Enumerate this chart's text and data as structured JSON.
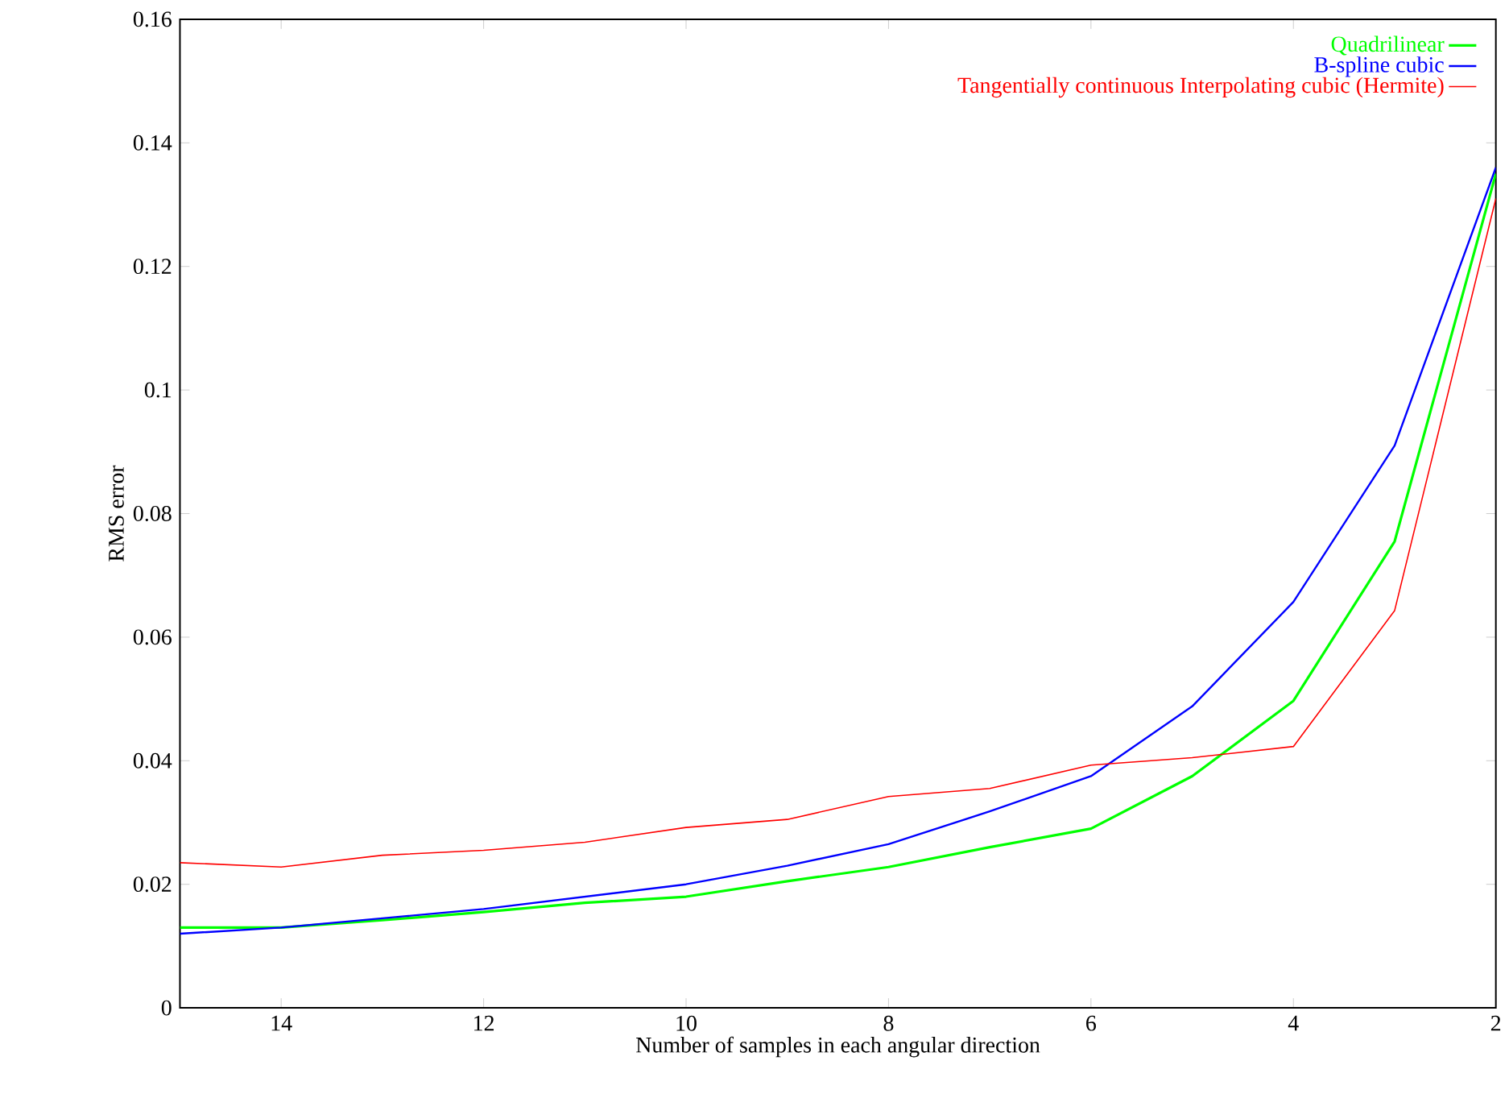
{
  "chart_data": {
    "type": "line",
    "xlabel": "Number of samples in each angular direction",
    "ylabel": "RMS error",
    "x": [
      15,
      14,
      13,
      12,
      11,
      10,
      9,
      8,
      7,
      6,
      5,
      4,
      3,
      2
    ],
    "xlim": [
      15,
      2
    ],
    "xticks": [
      14,
      12,
      10,
      8,
      6,
      4,
      2
    ],
    "ylim": [
      0,
      0.16
    ],
    "yticks": [
      0,
      0.02,
      0.04,
      0.06,
      0.08,
      0.1,
      0.12,
      0.14,
      0.16
    ],
    "legend": "top right",
    "series": [
      {
        "name": "Quadrilinear",
        "color": "#00ff00",
        "values": [
          0.013,
          0.013,
          0.0142,
          0.0155,
          0.017,
          0.018,
          0.0205,
          0.0228,
          0.026,
          0.029,
          0.0375,
          0.0497,
          0.0755,
          0.135
        ]
      },
      {
        "name": "B-spline cubic",
        "color": "#0000ff",
        "values": [
          0.012,
          0.013,
          0.0145,
          0.016,
          0.018,
          0.02,
          0.023,
          0.0265,
          0.0318,
          0.0375,
          0.0488,
          0.0657,
          0.091,
          0.136
        ]
      },
      {
        "name": "Tangentially continuous Interpolating cubic (Hermite)",
        "color": "#ff0000",
        "values": [
          0.0235,
          0.0228,
          0.0247,
          0.0255,
          0.0268,
          0.0292,
          0.0305,
          0.0342,
          0.0355,
          0.0393,
          0.0405,
          0.0423,
          0.0643,
          0.131
        ]
      }
    ]
  }
}
